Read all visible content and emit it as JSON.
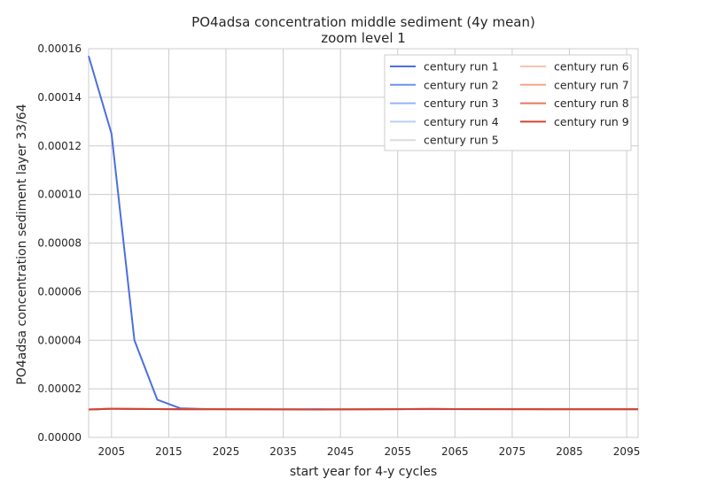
{
  "chart_data": {
    "type": "line",
    "title": "PO4adsa concentration middle sediment (4y mean)",
    "subtitle": "zoom level 1",
    "xlabel": "start year for 4-y cycles",
    "ylabel": "PO4adsa concentration sediment layer 33/64",
    "xlim": [
      2001,
      2097
    ],
    "ylim": [
      0,
      0.00016
    ],
    "xticks": [
      "2005",
      "2015",
      "2025",
      "2035",
      "2045",
      "2055",
      "2065",
      "2075",
      "2085",
      "2095"
    ],
    "xtick_values": [
      2005,
      2015,
      2025,
      2035,
      2045,
      2055,
      2065,
      2075,
      2085,
      2095
    ],
    "yticks": [
      "0.00000",
      "0.00002",
      "0.00004",
      "0.00006",
      "0.00008",
      "0.00010",
      "0.00012",
      "0.00014",
      "0.00016"
    ],
    "ytick_values": [
      0,
      2e-05,
      4e-05,
      6e-05,
      8e-05,
      0.0001,
      0.00012,
      0.00014,
      0.00016
    ],
    "grid": true,
    "legend_position": "top-right",
    "series": [
      {
        "name": "century run 1",
        "color": "#4c6fe0",
        "x": [
          2001,
          2005,
          2009,
          2013,
          2017,
          2021,
          2025,
          2033,
          2045,
          2061,
          2077,
          2097
        ],
        "y": [
          0.000157,
          0.000125,
          4e-05,
          1.55e-05,
          1.2e-05,
          1.17e-05,
          1.16e-05,
          1.16e-05,
          1.16e-05,
          1.16e-05,
          1.16e-05,
          1.16e-05
        ]
      },
      {
        "name": "century run 2",
        "color": "#6f91f0",
        "x": [
          2001,
          2005,
          2009,
          2017,
          2025,
          2041,
          2061,
          2081,
          2097
        ],
        "y": [
          1.15e-05,
          1.18e-05,
          1.17e-05,
          1.16e-05,
          1.16e-05,
          1.15e-05,
          1.17e-05,
          1.16e-05,
          1.16e-05
        ]
      },
      {
        "name": "century run 3",
        "color": "#94b4fa",
        "x": [
          2001,
          2005,
          2009,
          2017,
          2025,
          2041,
          2061,
          2081,
          2097
        ],
        "y": [
          1.15e-05,
          1.18e-05,
          1.17e-05,
          1.16e-05,
          1.16e-05,
          1.15e-05,
          1.17e-05,
          1.16e-05,
          1.16e-05
        ]
      },
      {
        "name": "century run 4",
        "color": "#b8cff5",
        "x": [
          2001,
          2005,
          2009,
          2017,
          2025,
          2041,
          2061,
          2081,
          2097
        ],
        "y": [
          1.15e-05,
          1.18e-05,
          1.17e-05,
          1.16e-05,
          1.16e-05,
          1.15e-05,
          1.17e-05,
          1.16e-05,
          1.16e-05
        ]
      },
      {
        "name": "century run 5",
        "color": "#dcdcdc",
        "x": [
          2001,
          2005,
          2009,
          2017,
          2025,
          2041,
          2061,
          2081,
          2097
        ],
        "y": [
          1.15e-05,
          1.18e-05,
          1.17e-05,
          1.16e-05,
          1.16e-05,
          1.15e-05,
          1.17e-05,
          1.16e-05,
          1.16e-05
        ]
      },
      {
        "name": "century run 6",
        "color": "#f5c4ad",
        "x": [
          2001,
          2005,
          2009,
          2017,
          2025,
          2041,
          2061,
          2081,
          2097
        ],
        "y": [
          1.15e-05,
          1.18e-05,
          1.17e-05,
          1.16e-05,
          1.16e-05,
          1.15e-05,
          1.17e-05,
          1.16e-05,
          1.16e-05
        ]
      },
      {
        "name": "century run 7",
        "color": "#f4a688",
        "x": [
          2001,
          2005,
          2009,
          2017,
          2025,
          2041,
          2061,
          2081,
          2097
        ],
        "y": [
          1.15e-05,
          1.18e-05,
          1.17e-05,
          1.16e-05,
          1.16e-05,
          1.15e-05,
          1.17e-05,
          1.16e-05,
          1.16e-05
        ]
      },
      {
        "name": "century run 8",
        "color": "#e7775f",
        "x": [
          2001,
          2005,
          2009,
          2017,
          2025,
          2041,
          2061,
          2081,
          2097
        ],
        "y": [
          1.15e-05,
          1.18e-05,
          1.17e-05,
          1.16e-05,
          1.16e-05,
          1.15e-05,
          1.17e-05,
          1.16e-05,
          1.16e-05
        ]
      },
      {
        "name": "century run 9",
        "color": "#cf4536",
        "x": [
          2001,
          2005,
          2009,
          2017,
          2025,
          2041,
          2061,
          2081,
          2097
        ],
        "y": [
          1.15e-05,
          1.18e-05,
          1.17e-05,
          1.16e-05,
          1.16e-05,
          1.15e-05,
          1.17e-05,
          1.16e-05,
          1.16e-05
        ]
      }
    ]
  }
}
